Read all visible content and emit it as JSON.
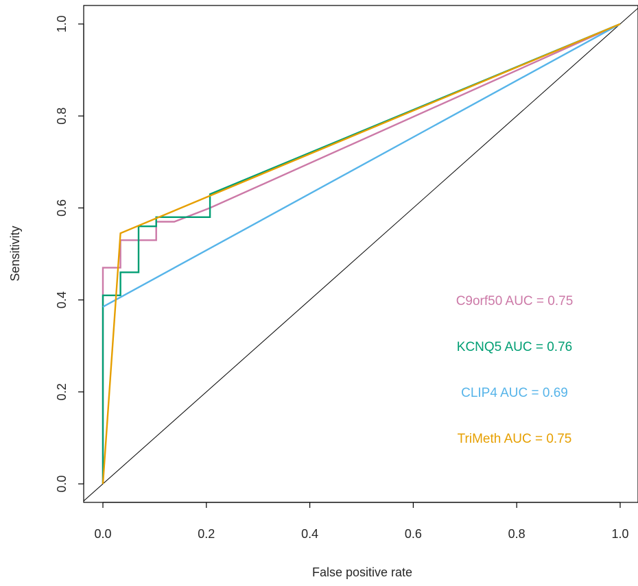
{
  "chart_data": {
    "type": "line",
    "title": "",
    "xlabel": "False positive rate",
    "ylabel": "Sensitivity",
    "xlim": [
      -0.04,
      1.04
    ],
    "ylim": [
      -0.04,
      1.04
    ],
    "xticks": [
      0.0,
      0.2,
      0.4,
      0.6,
      0.8,
      1.0
    ],
    "yticks": [
      0.0,
      0.2,
      0.4,
      0.6,
      0.8,
      1.0
    ],
    "xtick_labels": [
      "0.0",
      "0.2",
      "0.4",
      "0.6",
      "0.8",
      "1.0"
    ],
    "ytick_labels": [
      "0.0",
      "0.2",
      "0.4",
      "0.6",
      "0.8",
      "1.0"
    ],
    "grid": false,
    "legend_position": "bottom-right",
    "diagonal": {
      "x": [
        0,
        1
      ],
      "y": [
        0,
        1
      ],
      "color": "#000000"
    },
    "series": [
      {
        "name": "C9orf50 AUC = 0.75",
        "color": "#CC79A7",
        "x": [
          0,
          0,
          0.034,
          0.034,
          0.034,
          0.103,
          0.103,
          0.138,
          0.207,
          1.0
        ],
        "y": [
          0,
          0.47,
          0.47,
          0.51,
          0.53,
          0.53,
          0.57,
          0.57,
          0.6,
          1.0
        ]
      },
      {
        "name": "KCNQ5 AUC = 0.76",
        "color": "#009E73",
        "x": [
          0,
          0,
          0.034,
          0.034,
          0.069,
          0.069,
          0.103,
          0.103,
          0.207,
          0.207,
          1.0
        ],
        "y": [
          0,
          0.41,
          0.41,
          0.46,
          0.46,
          0.56,
          0.56,
          0.58,
          0.58,
          0.63,
          1.0
        ]
      },
      {
        "name": "CLIP4 AUC = 0.69",
        "color": "#56B4E9",
        "x": [
          0,
          1.0
        ],
        "y": [
          0.385,
          1.0
        ]
      },
      {
        "name": "TriMeth AUC = 0.75",
        "color": "#E69F00",
        "x": [
          0,
          0.034,
          1.0
        ],
        "y": [
          0,
          0.545,
          1.0
        ]
      }
    ]
  }
}
